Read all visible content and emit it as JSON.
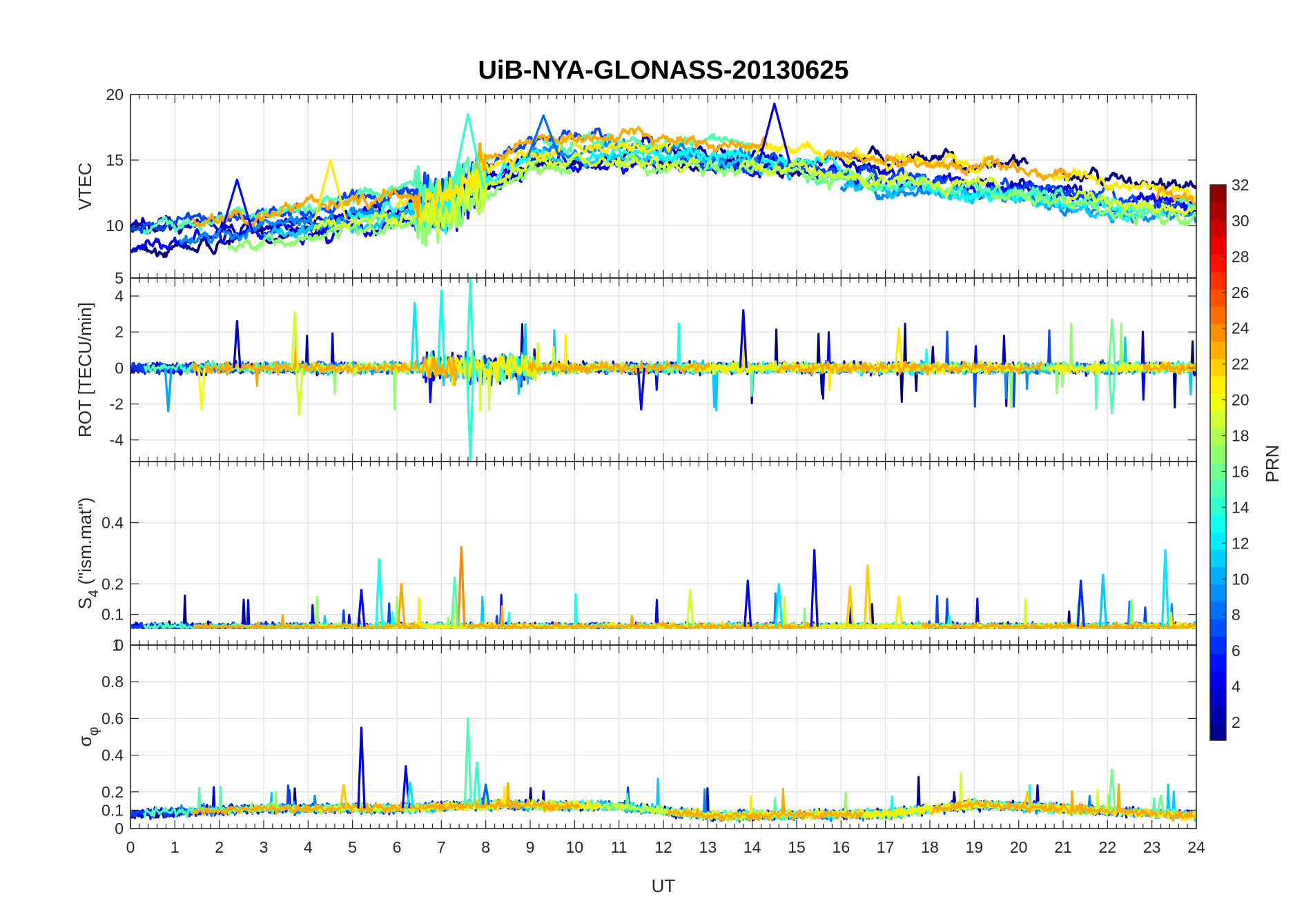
{
  "chart_data": {
    "type": "line",
    "title": "UiB-NYA-GLONASS-20130625",
    "xlabel": "UT",
    "xlim": [
      0,
      24
    ],
    "x_ticks": [
      "0",
      "1",
      "2",
      "3",
      "4",
      "5",
      "6",
      "7",
      "8",
      "9",
      "10",
      "11",
      "12",
      "13",
      "14",
      "15",
      "16",
      "17",
      "18",
      "19",
      "20",
      "21",
      "22",
      "23",
      "24"
    ],
    "grid": true,
    "colormap": "jet",
    "colorbar": {
      "label": "PRN",
      "range": [
        1,
        32
      ],
      "placement": "right",
      "ticks": [
        "2",
        "4",
        "6",
        "8",
        "10",
        "12",
        "14",
        "16",
        "18",
        "20",
        "22",
        "24",
        "26",
        "28",
        "30",
        "32"
      ]
    },
    "panels": [
      {
        "id": "vtec",
        "ylabel": "VTEC",
        "ylim": [
          6,
          20
        ],
        "y_ticks": [
          "10",
          "15",
          "20"
        ],
        "summary": {
          "start": 8.5,
          "morning_rise": [
            9,
            13
          ],
          "jump_at_ut": 7.5,
          "daytime_peak": [
            15,
            18.5
          ],
          "evening": [
            12,
            14
          ]
        }
      },
      {
        "id": "rot",
        "ylabel": "ROT [TECU/min]",
        "ylim": [
          -5.2,
          5
        ],
        "y_ticks": [
          "-4",
          "-2",
          "0",
          "2",
          "4",
          "5"
        ],
        "summary": {
          "baseline": 0,
          "typical_spread": 0.6,
          "max_spike": 5,
          "min_spike": -5.2,
          "spike_ut": 7.6
        }
      },
      {
        "id": "s4",
        "ylabel": "S4 (\"ism.mat\")",
        "ylabel_main": "S",
        "ylabel_sub": "4",
        "ylabel_rest": " (\"ism.mat\")",
        "ylim": [
          0,
          0.6
        ],
        "y_ticks": [
          "0.1",
          "0.2",
          "0.4"
        ],
        "y_ticks_low": [
          "0",
          "1"
        ],
        "summary": {
          "baseline": 0.06,
          "max": 0.32,
          "max_ut": 7.45
        }
      },
      {
        "id": "sigma",
        "ylabel": "σ φ",
        "ylabel_main": "σ",
        "ylabel_sub": "φ",
        "ylim": [
          0,
          1
        ],
        "y_ticks": [
          "0",
          "0.1",
          "0.2",
          "0.4",
          "0.6",
          "0.8"
        ],
        "summary": {
          "baseline": 0.08,
          "max": 0.6,
          "max_ut": 7.6
        }
      }
    ],
    "series": [
      {
        "prn": 1
      },
      {
        "prn": 3
      },
      {
        "prn": 5
      },
      {
        "prn": 7
      },
      {
        "prn": 9
      },
      {
        "prn": 11
      },
      {
        "prn": 13
      },
      {
        "prn": 15
      },
      {
        "prn": 17
      },
      {
        "prn": 19
      },
      {
        "prn": 21
      },
      {
        "prn": 23
      }
    ],
    "peaks": [
      {
        "panel": "vtec",
        "ut": 14.5,
        "value": 19.3,
        "prn": 4
      },
      {
        "panel": "vtec",
        "ut": 7.6,
        "value": 18.5,
        "prn": 14
      },
      {
        "panel": "vtec",
        "ut": 9.3,
        "value": 18.4,
        "prn": 8
      },
      {
        "panel": "vtec",
        "ut": 2.4,
        "value": 13.5,
        "prn": 5
      },
      {
        "panel": "vtec",
        "ut": 4.5,
        "value": 15.0,
        "prn": 21
      },
      {
        "panel": "rot",
        "ut": 7.65,
        "value": 5.0,
        "prn": 14
      },
      {
        "panel": "rot",
        "ut": 7.65,
        "value": -5.2,
        "prn": 14
      },
      {
        "panel": "rot",
        "ut": 7.0,
        "value": 4.3,
        "prn": 13
      },
      {
        "panel": "rot",
        "ut": 6.4,
        "value": 3.6,
        "prn": 12
      },
      {
        "panel": "rot",
        "ut": 13.8,
        "value": 3.2,
        "prn": 4
      },
      {
        "panel": "rot",
        "ut": 3.7,
        "value": 3.1,
        "prn": 19
      },
      {
        "panel": "rot",
        "ut": 2.4,
        "value": 2.6,
        "prn": 3
      },
      {
        "panel": "rot",
        "ut": 0.85,
        "value": -2.4,
        "prn": 10
      },
      {
        "panel": "rot",
        "ut": 22.1,
        "value": -2.5,
        "prn": 15
      },
      {
        "panel": "rot",
        "ut": 1.6,
        "value": -2.3,
        "prn": 20
      },
      {
        "panel": "rot",
        "ut": 3.8,
        "value": -2.6,
        "prn": 19
      },
      {
        "panel": "rot",
        "ut": 22.1,
        "value": 2.7,
        "prn": 16
      },
      {
        "panel": "rot",
        "ut": 17.3,
        "value": 2.2,
        "prn": 21
      },
      {
        "panel": "rot",
        "ut": 11.5,
        "value": -2.3,
        "prn": 5
      },
      {
        "panel": "s4",
        "ut": 7.45,
        "value": 0.32,
        "prn": 24
      },
      {
        "panel": "s4",
        "ut": 15.4,
        "value": 0.31,
        "prn": 5
      },
      {
        "panel": "s4",
        "ut": 23.3,
        "value": 0.31,
        "prn": 12
      },
      {
        "panel": "s4",
        "ut": 5.6,
        "value": 0.28,
        "prn": 13
      },
      {
        "panel": "s4",
        "ut": 16.6,
        "value": 0.26,
        "prn": 22
      },
      {
        "panel": "s4",
        "ut": 6.1,
        "value": 0.2,
        "prn": 23
      },
      {
        "panel": "s4",
        "ut": 7.3,
        "value": 0.22,
        "prn": 15
      },
      {
        "panel": "s4",
        "ut": 21.9,
        "value": 0.23,
        "prn": 11
      },
      {
        "panel": "s4",
        "ut": 21.4,
        "value": 0.21,
        "prn": 6
      },
      {
        "panel": "s4",
        "ut": 13.9,
        "value": 0.21,
        "prn": 5
      },
      {
        "panel": "s4",
        "ut": 14.6,
        "value": 0.2,
        "prn": 12
      },
      {
        "panel": "s4",
        "ut": 12.6,
        "value": 0.18,
        "prn": 19
      },
      {
        "panel": "s4",
        "ut": 16.2,
        "value": 0.19,
        "prn": 22
      },
      {
        "panel": "s4",
        "ut": 5.2,
        "value": 0.18,
        "prn": 5
      },
      {
        "panel": "s4",
        "ut": 17.3,
        "value": 0.16,
        "prn": 21
      },
      {
        "panel": "sigma",
        "ut": 7.6,
        "value": 0.6,
        "prn": 15
      },
      {
        "panel": "sigma",
        "ut": 5.2,
        "value": 0.55,
        "prn": 4
      },
      {
        "panel": "sigma",
        "ut": 6.2,
        "value": 0.34,
        "prn": 5
      },
      {
        "panel": "sigma",
        "ut": 22.1,
        "value": 0.32,
        "prn": 16
      },
      {
        "panel": "sigma",
        "ut": 7.8,
        "value": 0.36,
        "prn": 14
      },
      {
        "panel": "sigma",
        "ut": 4.8,
        "value": 0.24,
        "prn": 22
      },
      {
        "panel": "sigma",
        "ut": 6.3,
        "value": 0.25,
        "prn": 12
      },
      {
        "panel": "sigma",
        "ut": 8.0,
        "value": 0.24,
        "prn": 8
      },
      {
        "panel": "sigma",
        "ut": 20.2,
        "value": 0.2,
        "prn": 22
      },
      {
        "panel": "sigma",
        "ut": 23.2,
        "value": 0.18,
        "prn": 16
      }
    ]
  }
}
